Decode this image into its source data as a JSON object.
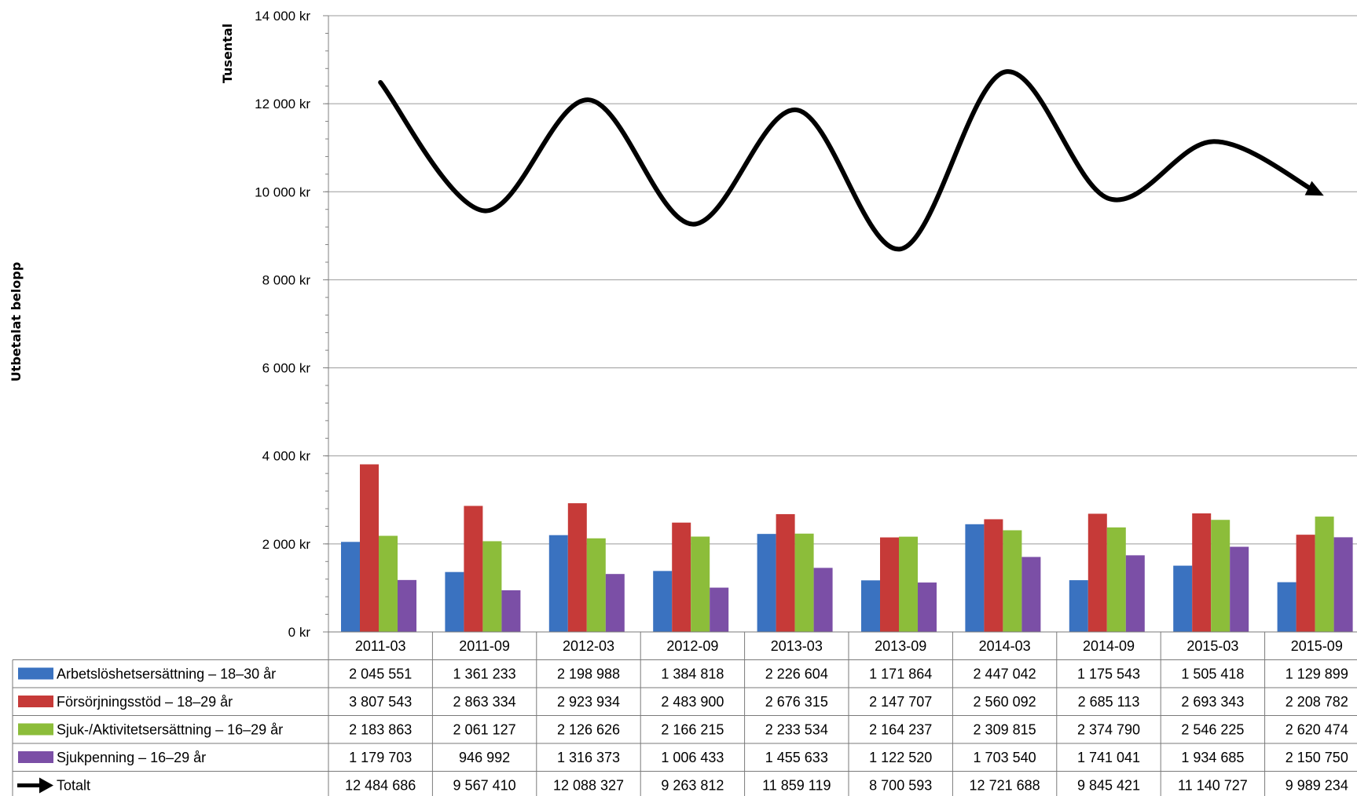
{
  "chart_data": {
    "type": "bar",
    "ylabel": "Utbetalat belopp",
    "unit_label": "Tusental",
    "ylim": [
      0,
      14000
    ],
    "yticks": [
      "0 kr",
      "2 000 kr",
      "4 000 kr",
      "6 000 kr",
      "8 000 kr",
      "10 000 kr",
      "12 000 kr",
      "14 000 kr"
    ],
    "grid": true,
    "legend": "data-table",
    "categories": [
      "2011-03",
      "2011-09",
      "2012-03",
      "2012-09",
      "2013-03",
      "2013-09",
      "2014-03",
      "2014-09",
      "2015-03",
      "2015-09"
    ],
    "series": [
      {
        "name": "Arbetslöshetsersättning – 18–30 år",
        "color": "#3a72c0",
        "values": [
          2045.551,
          1361.233,
          2198.988,
          1384.818,
          2226.604,
          1171.864,
          2447.042,
          1175.543,
          1505.418,
          1129.899
        ],
        "labels": [
          "2 045 551",
          "1 361 233",
          "2 198 988",
          "1 384 818",
          "2 226 604",
          "1 171 864",
          "2 447 042",
          "1 175 543",
          "1 505 418",
          "1 129 899"
        ]
      },
      {
        "name": "Försörjningsstöd – 18–29 år",
        "color": "#c63a38",
        "values": [
          3807.543,
          2863.334,
          2923.934,
          2483.9,
          2676.315,
          2147.707,
          2560.092,
          2685.113,
          2693.343,
          2208.782
        ],
        "labels": [
          "3 807 543",
          "2 863 334",
          "2 923 934",
          "2 483 900",
          "2 676 315",
          "2 147 707",
          "2 560 092",
          "2 685 113",
          "2 693 343",
          "2 208 782"
        ]
      },
      {
        "name": "Sjuk-/Aktivitetsersättning – 16–29 år",
        "color": "#8cbd3a",
        "values": [
          2183.863,
          2061.127,
          2126.626,
          2166.215,
          2233.534,
          2164.237,
          2309.815,
          2374.79,
          2546.225,
          2620.474
        ],
        "labels": [
          "2 183 863",
          "2 061 127",
          "2 126 626",
          "2 166 215",
          "2 233 534",
          "2 164 237",
          "2 309 815",
          "2 374 790",
          "2 546 225",
          "2 620 474"
        ]
      },
      {
        "name": "Sjukpenning – 16–29 år",
        "color": "#7b4fa6",
        "values": [
          1179.703,
          946.992,
          1316.373,
          1006.433,
          1455.633,
          1122.52,
          1703.54,
          1741.041,
          1934.685,
          2150.75
        ],
        "labels": [
          "1 179 703",
          "946 992",
          "1 316 373",
          "1 006 433",
          "1 455 633",
          "1 122 520",
          "1 703 540",
          "1 741 041",
          "1 934 685",
          "2 150 750"
        ]
      }
    ],
    "total": {
      "name": "Totalt",
      "type": "line",
      "color": "#000000",
      "values": [
        12484.686,
        9567.41,
        12088.327,
        9263.812,
        11859.119,
        8700.593,
        12721.688,
        9845.421,
        11140.727,
        9989.234
      ],
      "labels": [
        "12 484 686",
        "9 567 410",
        "12 088 327",
        "9 263 812",
        "11 859 119",
        "8 700 593",
        "12 721 688",
        "9 845 421",
        "11 140 727",
        "9 989 234"
      ]
    }
  }
}
